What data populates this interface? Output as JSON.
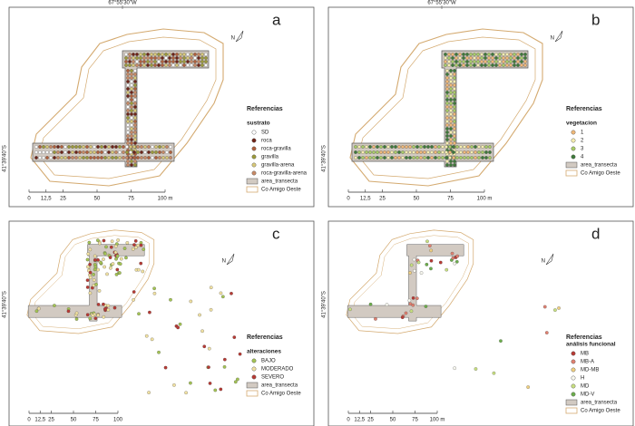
{
  "panels": [
    {
      "label": "a",
      "coord_top": "67°55'30\"W",
      "coord_left": "41°39'40\"S",
      "north": "N",
      "legend_heading": "Referencias",
      "legend_title": "sustrato",
      "legend_items": [
        {
          "label": "SD",
          "color": "#ffffff"
        },
        {
          "label": "roca",
          "color": "#6e2418"
        },
        {
          "label": "roca-gravilla",
          "color": "#b0603c"
        },
        {
          "label": "gravilla",
          "color": "#9c9a3a"
        },
        {
          "label": "gravilla-arena",
          "color": "#d8c878"
        },
        {
          "label": "roca-gravilla-arena",
          "color": "#c88a66"
        }
      ],
      "scale": [
        "0",
        "12,5",
        "25",
        "50",
        "75",
        "100 m"
      ],
      "transect_label": "area_transecta",
      "island_label": "Co Amigo Oeste"
    },
    {
      "label": "b",
      "coord_top": "67°55'30\"W",
      "coord_left": "41°39'40\"S",
      "north": "N",
      "legend_heading": "Referencias",
      "legend_title": "vegetacion",
      "legend_items": [
        {
          "label": "1",
          "color": "#f0b878"
        },
        {
          "label": "2",
          "color": "#f6eeb0"
        },
        {
          "label": "3",
          "color": "#a8cc68"
        },
        {
          "label": "4",
          "color": "#3e7a3a"
        }
      ],
      "scale": [
        "0",
        "12,5",
        "25",
        "50",
        "75",
        "100 m"
      ],
      "transect_label": "area_transecta",
      "island_label": "Co Amigo Oeste"
    },
    {
      "label": "c",
      "coord_left": "41°39'40\"S",
      "north": "N",
      "legend_heading": "Referencias",
      "legend_title": "alteraciones",
      "legend_items": [
        {
          "label": "BAJO",
          "color": "#a4c454"
        },
        {
          "label": "MODERADO",
          "color": "#f2e2a2"
        },
        {
          "label": "SEVERO",
          "color": "#b83a34"
        }
      ],
      "scale": [
        "0",
        "12,5",
        "25",
        "50",
        "75",
        "100"
      ],
      "transect_label": "area_transecta",
      "island_label": "Co Amigo Oeste"
    },
    {
      "label": "d",
      "coord_left": "41°39'40\"S",
      "north": "N",
      "legend_heading": "Referencias",
      "legend_title": "análisis funcional",
      "legend_items": [
        {
          "label": "MB",
          "color": "#b83a34"
        },
        {
          "label": "MB-A",
          "color": "#e08070"
        },
        {
          "label": "MD-MB",
          "color": "#f0d080"
        },
        {
          "label": "H",
          "color": "#f8f8f0"
        },
        {
          "label": "MD",
          "color": "#c8e080"
        },
        {
          "label": "MD-V",
          "color": "#6cae4c"
        }
      ],
      "scale": [
        "0",
        "12,5",
        "25",
        "50",
        "75",
        "100 m"
      ],
      "transect_label": "area_transecta",
      "island_label": "Co Amigo Oeste"
    }
  ]
}
